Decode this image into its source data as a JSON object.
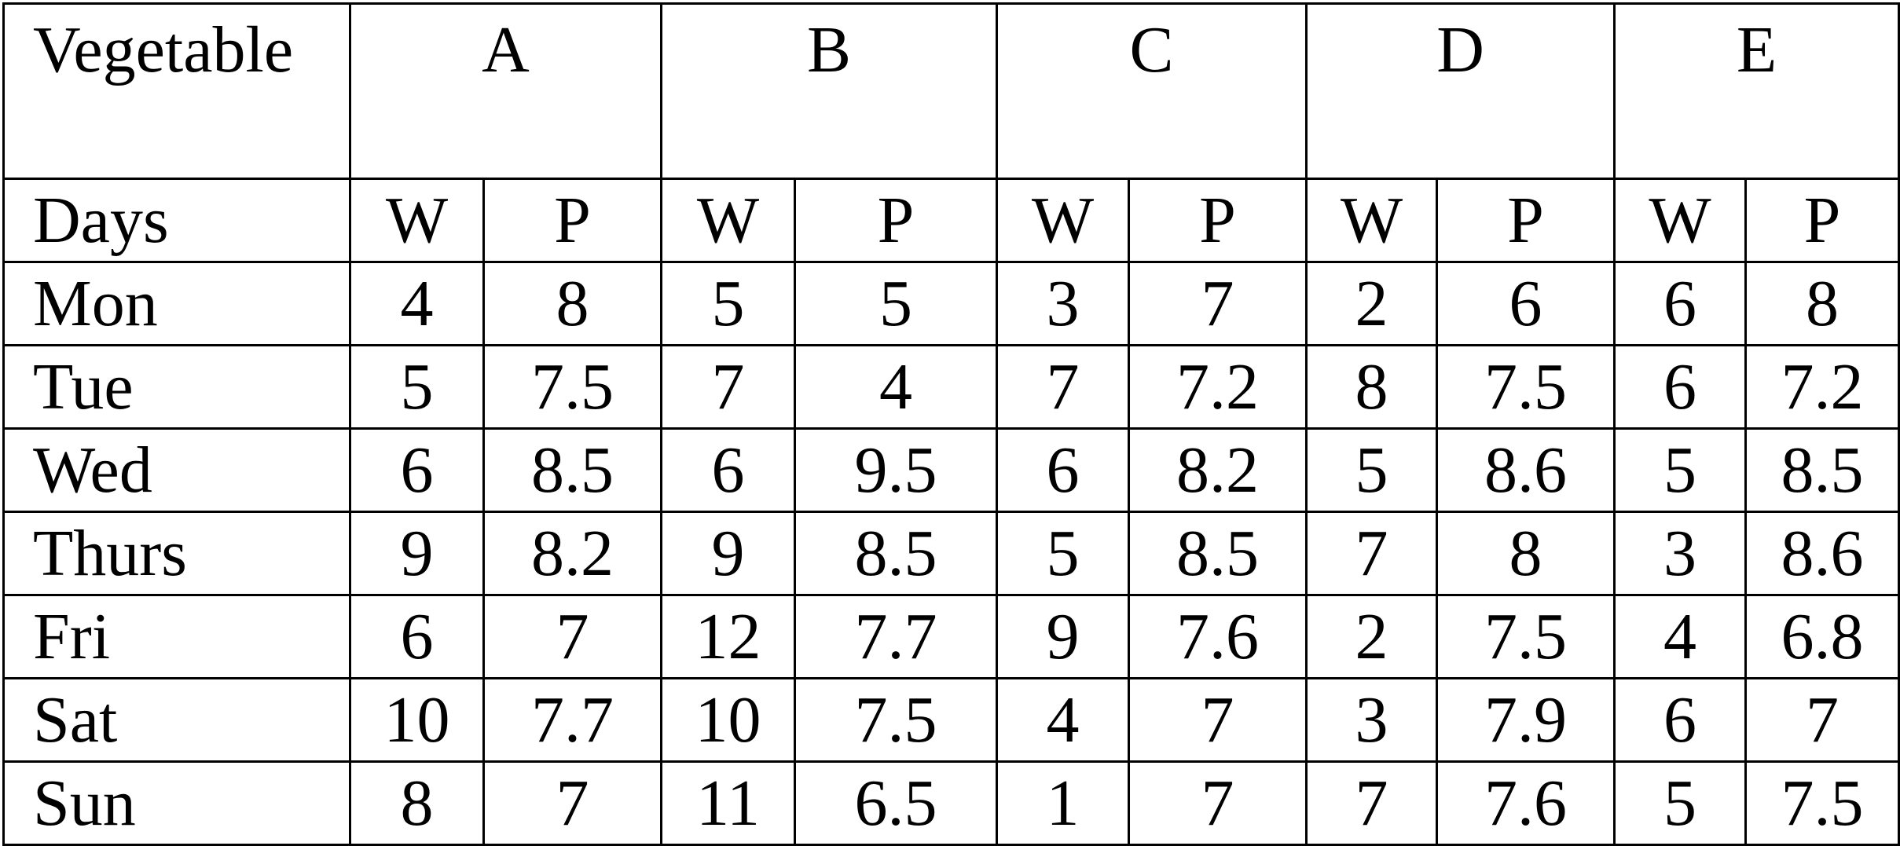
{
  "table": {
    "corner_top": "Vegetable",
    "corner_sub": "Days",
    "groups": [
      "A",
      "B",
      "C",
      "D",
      "E"
    ],
    "subheaders": [
      "W",
      "P"
    ],
    "rows": [
      {
        "day": "Mon",
        "cells": [
          "4",
          "8",
          "5",
          "5",
          "3",
          "7",
          "2",
          "6",
          "6",
          "8"
        ]
      },
      {
        "day": "Tue",
        "cells": [
          "5",
          "7.5",
          "7",
          "4",
          "7",
          "7.2",
          "8",
          "7.5",
          "6",
          "7.2"
        ]
      },
      {
        "day": "Wed",
        "cells": [
          "6",
          "8.5",
          "6",
          "9.5",
          "6",
          "8.2",
          "5",
          "8.6",
          "5",
          "8.5"
        ]
      },
      {
        "day": "Thurs",
        "cells": [
          "9",
          "8.2",
          "9",
          "8.5",
          "5",
          "8.5",
          "7",
          "8",
          "3",
          "8.6"
        ]
      },
      {
        "day": "Fri",
        "cells": [
          "6",
          "7",
          "12",
          "7.7",
          "9",
          "7.6",
          "2",
          "7.5",
          "4",
          "6.8"
        ]
      },
      {
        "day": "Sat",
        "cells": [
          "10",
          "7.7",
          "10",
          "7.5",
          "4",
          "7",
          "3",
          "7.9",
          "6",
          "7"
        ]
      },
      {
        "day": "Sun",
        "cells": [
          "8",
          "7",
          "11",
          "6.5",
          "1",
          "7",
          "7",
          "7.6",
          "5",
          "7.5"
        ]
      }
    ]
  }
}
